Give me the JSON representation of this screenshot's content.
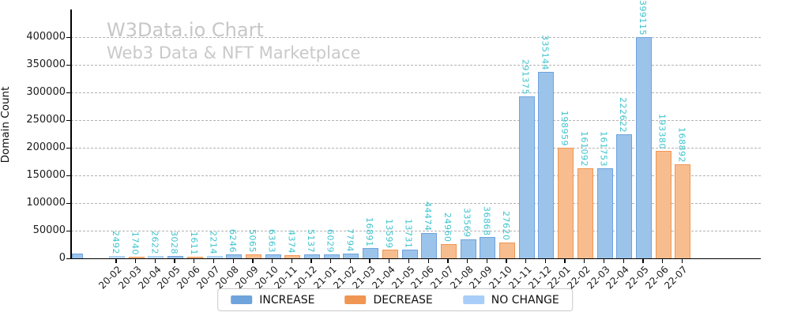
{
  "title": "W3Data.io Chart",
  "subtitle": "Web3 Data & NFT Marketplace",
  "chart_data": {
    "type": "bar",
    "title": "W3Data.io Chart",
    "subtitle": "Web3 Data & NFT Marketplace",
    "xlabel": "",
    "ylabel": "Domain Count",
    "ylim": [
      0,
      450000
    ],
    "yticks": [
      0,
      50000,
      100000,
      150000,
      200000,
      250000,
      300000,
      350000,
      400000
    ],
    "grid": "horizontal-dashed",
    "legend_position": "bottom-center-outside",
    "value_label_color": "#3ec3ce",
    "series_colors": {
      "increase": {
        "fill": "#9cc3e9",
        "edge": "#6fa3dc"
      },
      "decrease": {
        "fill": "#f7bd8f",
        "edge": "#f09653"
      },
      "no_change": {
        "fill": "#bcdaf7",
        "edge": "#a9cdf4"
      }
    },
    "legend": [
      {
        "label": "INCREASE",
        "series": "increase",
        "color": "#6fa3dc"
      },
      {
        "label": "DECREASE",
        "series": "decrease",
        "color": "#f09653"
      },
      {
        "label": "NO CHANGE",
        "series": "no_change",
        "color": "#a8cef7"
      }
    ],
    "edge_partial_bar": {
      "series": "increase",
      "estimated_value": 7000,
      "label": ""
    },
    "points": [
      {
        "label": "20-02",
        "value": 2492,
        "series": "no_change"
      },
      {
        "label": "20-03",
        "value": 1740,
        "series": "decrease"
      },
      {
        "label": "20-04",
        "value": 2622,
        "series": "no_change"
      },
      {
        "label": "20-05",
        "value": 3028,
        "series": "increase"
      },
      {
        "label": "20-06",
        "value": 1611,
        "series": "decrease"
      },
      {
        "label": "20-07",
        "value": 2214,
        "series": "no_change"
      },
      {
        "label": "20-08",
        "value": 6246,
        "series": "increase"
      },
      {
        "label": "20-09",
        "value": 5065,
        "series": "decrease"
      },
      {
        "label": "20-10",
        "value": 6363,
        "series": "increase"
      },
      {
        "label": "20-11",
        "value": 4374,
        "series": "decrease"
      },
      {
        "label": "20-12",
        "value": 5137,
        "series": "increase"
      },
      {
        "label": "21-01",
        "value": 6029,
        "series": "increase"
      },
      {
        "label": "21-02",
        "value": 7794,
        "series": "increase"
      },
      {
        "label": "21-03",
        "value": 16891,
        "series": "increase"
      },
      {
        "label": "21-04",
        "value": 13599,
        "series": "decrease"
      },
      {
        "label": "21-05",
        "value": 13731,
        "series": "increase"
      },
      {
        "label": "21-06",
        "value": 44474,
        "series": "increase"
      },
      {
        "label": "21-07",
        "value": 24960,
        "series": "decrease"
      },
      {
        "label": "21-08",
        "value": 33569,
        "series": "increase"
      },
      {
        "label": "21-09",
        "value": 36868,
        "series": "increase"
      },
      {
        "label": "21-10",
        "value": 27620,
        "series": "decrease"
      },
      {
        "label": "21-11",
        "value": 291375,
        "series": "increase"
      },
      {
        "label": "21-12",
        "value": 335144,
        "series": "increase"
      },
      {
        "label": "22-01",
        "value": 198959,
        "series": "decrease"
      },
      {
        "label": "22-02",
        "value": 161092,
        "series": "decrease"
      },
      {
        "label": "22-03",
        "value": 161753,
        "series": "increase"
      },
      {
        "label": "22-04",
        "value": 222622,
        "series": "increase"
      },
      {
        "label": "22-05",
        "value": 399115,
        "series": "increase"
      },
      {
        "label": "22-06",
        "value": 193380,
        "series": "decrease"
      },
      {
        "label": "22-07",
        "value": 168892,
        "series": "decrease"
      }
    ]
  }
}
